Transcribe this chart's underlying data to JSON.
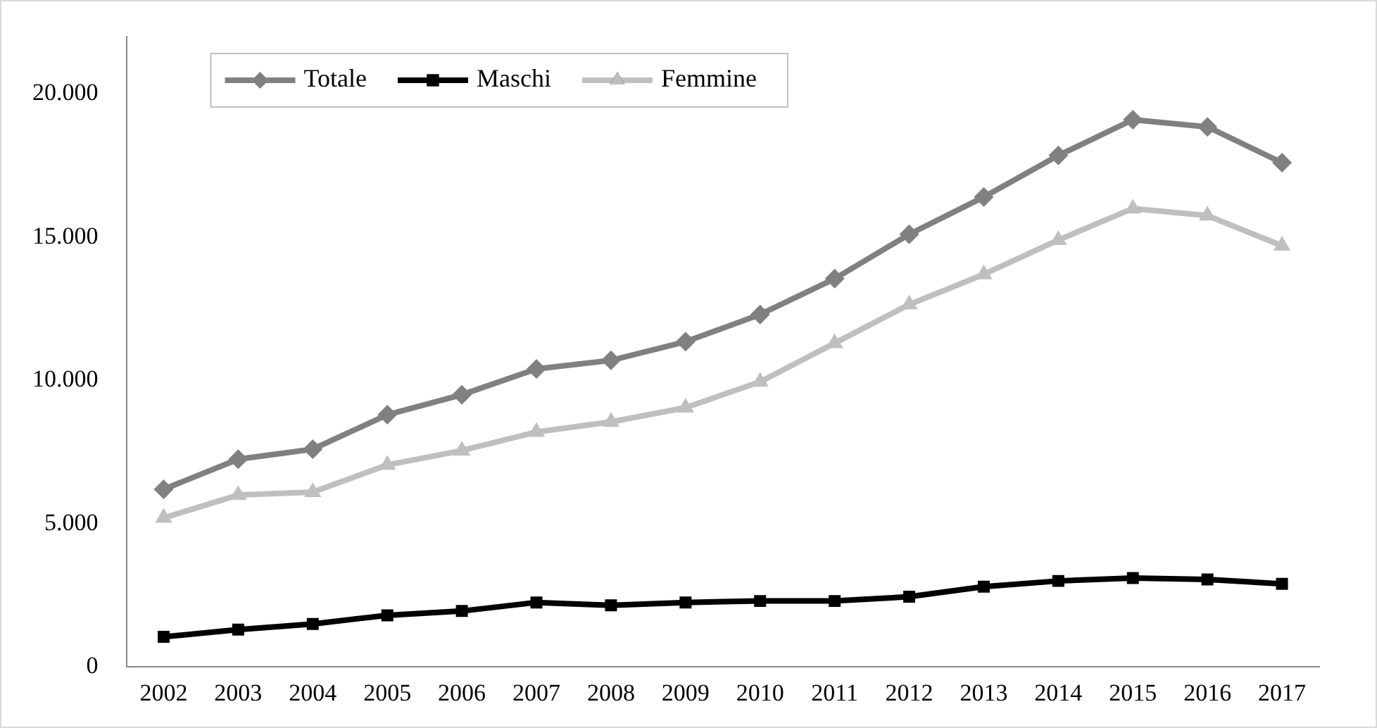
{
  "chart_data": {
    "type": "line",
    "categories": [
      "2002",
      "2003",
      "2004",
      "2005",
      "2006",
      "2007",
      "2008",
      "2009",
      "2010",
      "2011",
      "2012",
      "2013",
      "2014",
      "2015",
      "2016",
      "2017"
    ],
    "series": [
      {
        "name": "Totale",
        "color": "#808080",
        "marker": "diamond",
        "values": [
          6200,
          7250,
          7600,
          8800,
          9500,
          10400,
          10700,
          11350,
          12300,
          13550,
          15100,
          16400,
          17850,
          19100,
          18850,
          17600
        ]
      },
      {
        "name": "Maschi",
        "color": "#000000",
        "marker": "square",
        "values": [
          1050,
          1300,
          1500,
          1800,
          1950,
          2250,
          2150,
          2250,
          2300,
          2300,
          2450,
          2800,
          3000,
          3100,
          3050,
          2900
        ]
      },
      {
        "name": "Femmine",
        "color": "#bfbfbf",
        "marker": "triangle",
        "values": [
          5200,
          6000,
          6100,
          7050,
          7550,
          8200,
          8550,
          9050,
          9950,
          11300,
          12650,
          13700,
          14900,
          16000,
          15750,
          14700
        ]
      }
    ],
    "ylim": [
      0,
      22000
    ],
    "yticks": [
      {
        "value": 0,
        "label": "0"
      },
      {
        "value": 5000,
        "label": "5.000"
      },
      {
        "value": 10000,
        "label": "10.000"
      },
      {
        "value": 15000,
        "label": "15.000"
      },
      {
        "value": 20000,
        "label": "20.000"
      }
    ],
    "grid": false,
    "legend": "top left",
    "line_style": "solid"
  }
}
